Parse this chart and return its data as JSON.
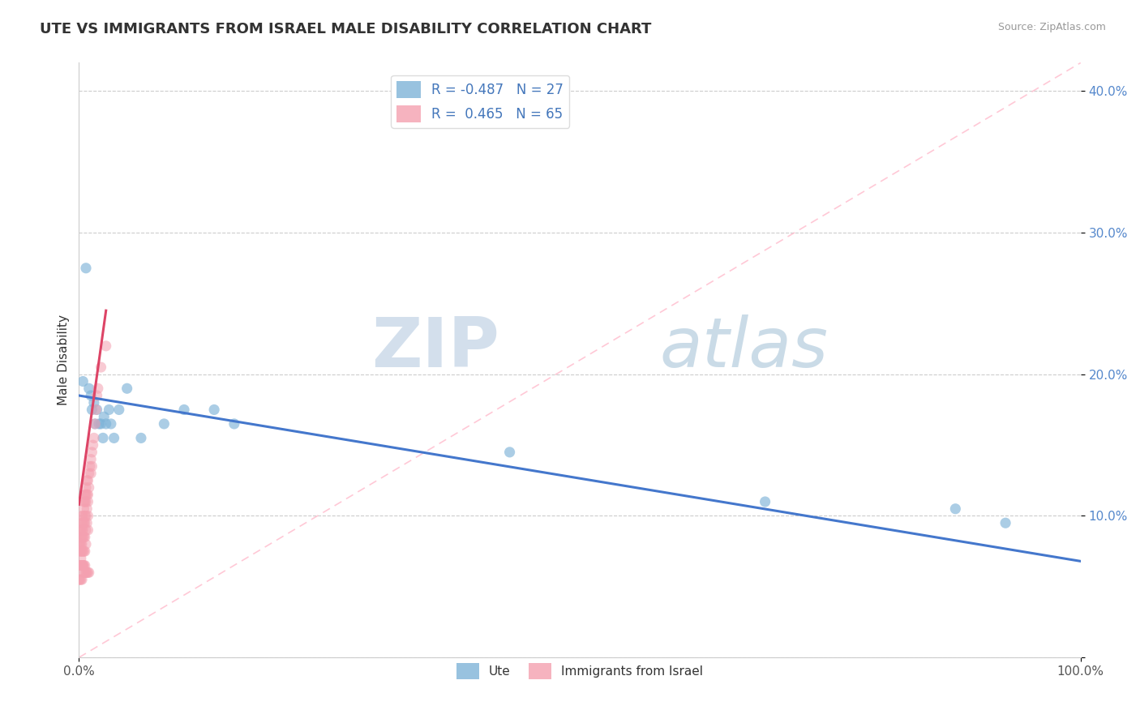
{
  "title": "UTE VS IMMIGRANTS FROM ISRAEL MALE DISABILITY CORRELATION CHART",
  "source": "Source: ZipAtlas.com",
  "ylabel": "Male Disability",
  "xlim": [
    0,
    1.0
  ],
  "ylim": [
    0,
    0.42
  ],
  "ytick_positions": [
    0,
    0.1,
    0.2,
    0.3,
    0.4
  ],
  "yticklabels": [
    "",
    "10.0%",
    "20.0%",
    "30.0%",
    "40.0%"
  ],
  "ute_R": -0.487,
  "ute_N": 27,
  "israel_R": 0.465,
  "israel_N": 65,
  "ute_color": "#7EB3D8",
  "israel_color": "#F4A0B0",
  "ute_line_color": "#4477CC",
  "israel_line_color": "#DD4466",
  "diag_line_color": "#FFBBCC",
  "watermark_zip": "ZIP",
  "watermark_atlas": "atlas",
  "ute_x": [
    0.004,
    0.007,
    0.01,
    0.012,
    0.013,
    0.015,
    0.016,
    0.018,
    0.02,
    0.022,
    0.024,
    0.025,
    0.027,
    0.03,
    0.032,
    0.035,
    0.04,
    0.048,
    0.062,
    0.085,
    0.105,
    0.135,
    0.155,
    0.43,
    0.685,
    0.875,
    0.925
  ],
  "ute_y": [
    0.195,
    0.275,
    0.19,
    0.185,
    0.175,
    0.18,
    0.165,
    0.175,
    0.165,
    0.165,
    0.155,
    0.17,
    0.165,
    0.175,
    0.165,
    0.155,
    0.175,
    0.19,
    0.155,
    0.165,
    0.175,
    0.175,
    0.165,
    0.145,
    0.11,
    0.105,
    0.095
  ],
  "israel_x": [
    0.0,
    0.001,
    0.001,
    0.001,
    0.002,
    0.002,
    0.002,
    0.002,
    0.002,
    0.003,
    0.003,
    0.003,
    0.003,
    0.003,
    0.003,
    0.003,
    0.004,
    0.004,
    0.004,
    0.004,
    0.004,
    0.004,
    0.005,
    0.005,
    0.005,
    0.005,
    0.005,
    0.005,
    0.006,
    0.006,
    0.006,
    0.006,
    0.006,
    0.006,
    0.006,
    0.007,
    0.007,
    0.007,
    0.007,
    0.007,
    0.007,
    0.008,
    0.008,
    0.008,
    0.008,
    0.009,
    0.009,
    0.009,
    0.009,
    0.009,
    0.01,
    0.01,
    0.011,
    0.012,
    0.012,
    0.013,
    0.013,
    0.014,
    0.015,
    0.016,
    0.017,
    0.018,
    0.019,
    0.022,
    0.027
  ],
  "israel_y": [
    0.08,
    0.09,
    0.08,
    0.075,
    0.09,
    0.085,
    0.08,
    0.075,
    0.07,
    0.1,
    0.095,
    0.09,
    0.085,
    0.08,
    0.075,
    0.065,
    0.1,
    0.095,
    0.09,
    0.085,
    0.075,
    0.065,
    0.11,
    0.105,
    0.095,
    0.085,
    0.075,
    0.065,
    0.115,
    0.11,
    0.1,
    0.095,
    0.085,
    0.075,
    0.065,
    0.12,
    0.115,
    0.11,
    0.1,
    0.09,
    0.08,
    0.125,
    0.115,
    0.105,
    0.095,
    0.125,
    0.115,
    0.11,
    0.1,
    0.09,
    0.13,
    0.12,
    0.135,
    0.14,
    0.13,
    0.145,
    0.135,
    0.15,
    0.155,
    0.165,
    0.175,
    0.185,
    0.19,
    0.205,
    0.22
  ],
  "israel_extra_x": [
    0.0,
    0.0,
    0.001,
    0.001,
    0.002,
    0.002,
    0.003,
    0.003,
    0.004,
    0.005,
    0.006,
    0.007,
    0.008,
    0.009,
    0.01
  ],
  "israel_extra_y": [
    0.065,
    0.055,
    0.065,
    0.055,
    0.065,
    0.055,
    0.065,
    0.055,
    0.065,
    0.06,
    0.06,
    0.06,
    0.06,
    0.06,
    0.06
  ],
  "ute_line_x0": 0.0,
  "ute_line_x1": 1.0,
  "ute_line_y0": 0.185,
  "ute_line_y1": 0.068,
  "israel_line_x0": 0.0,
  "israel_line_x1": 0.027,
  "israel_line_y0": 0.108,
  "israel_line_y1": 0.245
}
